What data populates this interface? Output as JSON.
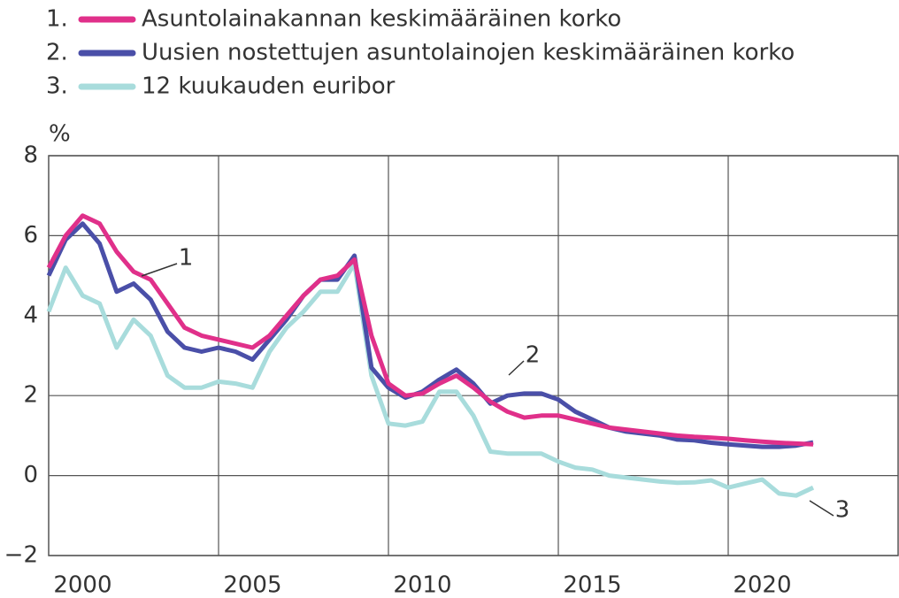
{
  "chart_data": {
    "type": "line",
    "ylabel": "%",
    "x": [
      1999,
      1999.5,
      2000,
      2000.5,
      2001,
      2001.5,
      2002,
      2002.5,
      2003,
      2003.5,
      2004,
      2004.5,
      2005,
      2005.5,
      2006,
      2006.5,
      2007,
      2007.5,
      2008,
      2008.5,
      2009,
      2009.5,
      2010,
      2010.5,
      2011,
      2011.5,
      2012,
      2012.5,
      2013,
      2013.5,
      2014,
      2014.5,
      2015,
      2015.5,
      2016,
      2016.5,
      2017,
      2017.5,
      2018,
      2018.5,
      2019,
      2019.5,
      2020,
      2020.5,
      2021,
      2021.5
    ],
    "series": [
      {
        "legend_prefix": "1.",
        "label": "1",
        "name": "Asuntolainakannan keskimääräinen korko",
        "color": "#e0308a",
        "values": [
          5.2,
          6.0,
          6.5,
          6.3,
          5.6,
          5.1,
          4.9,
          4.3,
          3.7,
          3.5,
          3.4,
          3.3,
          3.2,
          3.5,
          4.0,
          4.5,
          4.9,
          5.0,
          5.4,
          3.5,
          2.3,
          2.0,
          2.05,
          2.3,
          2.5,
          2.2,
          1.85,
          1.6,
          1.45,
          1.5,
          1.5,
          1.4,
          1.3,
          1.2,
          1.15,
          1.1,
          1.05,
          1.0,
          0.97,
          0.95,
          0.92,
          0.88,
          0.85,
          0.82,
          0.8,
          0.78
        ]
      },
      {
        "legend_prefix": "2.",
        "label": "2",
        "name": "Uusien nostettujen asuntolainojen keskimääräinen korko",
        "color": "#4a4fa8",
        "values": [
          5.0,
          5.9,
          6.3,
          5.8,
          4.6,
          4.8,
          4.4,
          3.6,
          3.2,
          3.1,
          3.2,
          3.1,
          2.9,
          3.4,
          3.9,
          4.5,
          4.9,
          4.9,
          5.5,
          2.7,
          2.2,
          1.95,
          2.1,
          2.4,
          2.65,
          2.3,
          1.8,
          2.0,
          2.05,
          2.05,
          1.9,
          1.6,
          1.4,
          1.2,
          1.1,
          1.05,
          1.0,
          0.9,
          0.88,
          0.82,
          0.78,
          0.75,
          0.72,
          0.72,
          0.75,
          0.83
        ]
      },
      {
        "legend_prefix": "3.",
        "label": "3",
        "name": "12 kuukauden euribor",
        "color": "#a8dcdc",
        "values": [
          4.1,
          5.2,
          4.5,
          4.3,
          3.2,
          3.9,
          3.5,
          2.5,
          2.2,
          2.2,
          2.35,
          2.3,
          2.2,
          3.1,
          3.7,
          4.1,
          4.6,
          4.6,
          5.3,
          2.5,
          1.3,
          1.25,
          1.35,
          2.1,
          2.1,
          1.5,
          0.6,
          0.55,
          0.55,
          0.55,
          0.35,
          0.2,
          0.15,
          0.0,
          -0.05,
          -0.1,
          -0.15,
          -0.18,
          -0.17,
          -0.12,
          -0.3,
          -0.2,
          -0.1,
          -0.45,
          -0.5,
          -0.3
        ]
      }
    ],
    "xlim": [
      1999,
      2024
    ],
    "xticks": [
      2000,
      2005,
      2010,
      2015,
      2020
    ],
    "xgrid": [
      2004,
      2009,
      2014,
      2019
    ],
    "ylim": [
      -2,
      8
    ],
    "yticks": [
      {
        "value": -2,
        "label": "−2"
      },
      0,
      2,
      4,
      6,
      8
    ],
    "grid": true
  }
}
